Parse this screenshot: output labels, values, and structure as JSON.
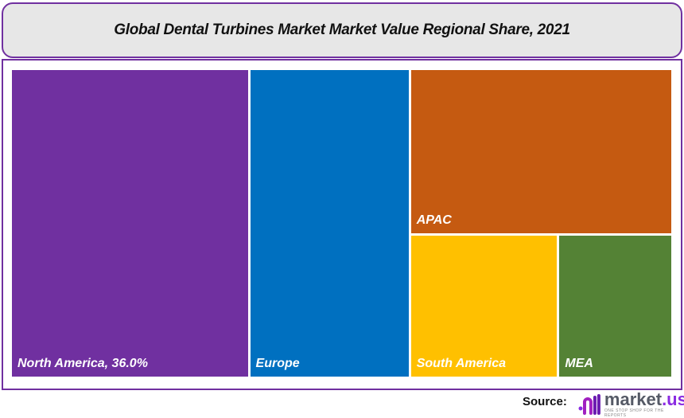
{
  "chart_data": {
    "type": "treemap",
    "title": "Global Dental Turbines Market  Market Value Regional Share, 2021",
    "tiles": [
      {
        "name": "North America",
        "label": "North America, 36.0%",
        "value": 36.0,
        "color": "#7030a0"
      },
      {
        "name": "Europe",
        "label": "Europe",
        "value": 24.3,
        "color": "#0070c0"
      },
      {
        "name": "APAC",
        "label": "APAC",
        "value": 21.3,
        "color": "#c55a11"
      },
      {
        "name": "South America",
        "label": "South America",
        "value": 10.4,
        "color": "#ffc000"
      },
      {
        "name": "MEA",
        "label": "MEA",
        "value": 8.0,
        "color": "#548235"
      }
    ]
  },
  "footer": {
    "source_label": "Source:",
    "logo_name": "market",
    "logo_dot": ".us",
    "logo_tagline": "ONE STOP SHOP FOR THE REPORTS"
  },
  "colors": {
    "border": "#7030a0",
    "title_bg": "#e7e7e7"
  }
}
